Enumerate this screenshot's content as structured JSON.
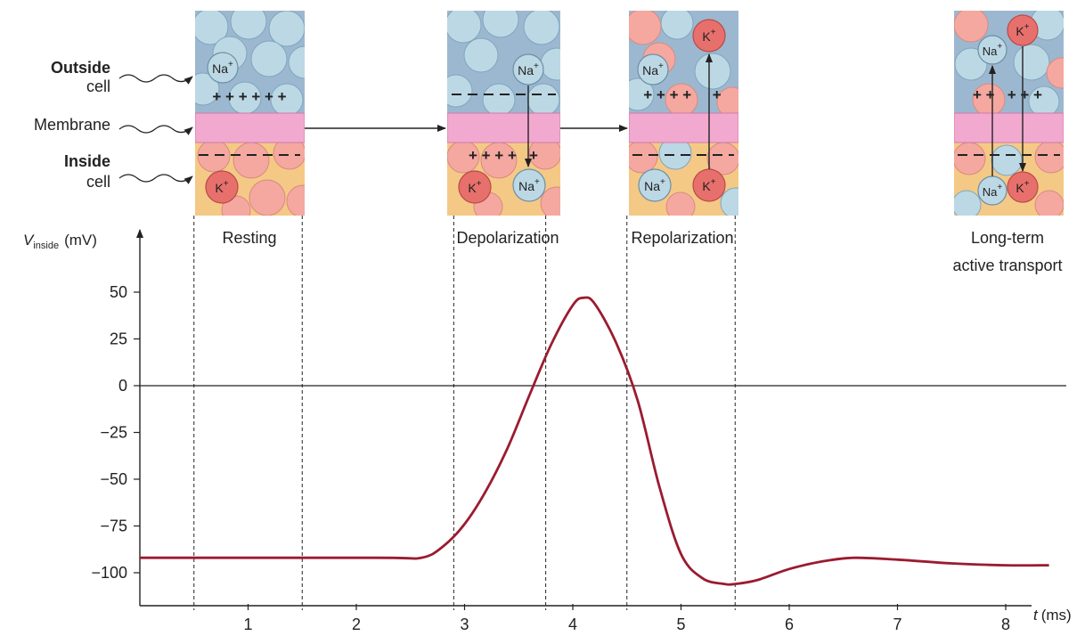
{
  "labels": {
    "outside_line1": "Outside",
    "outside_line2": "cell",
    "membrane": "Membrane",
    "inside_line1": "Inside",
    "inside_line2": "cell",
    "na": "Na",
    "k": "K",
    "ion_charge": "+",
    "plus_row": "+ + + + + +",
    "depol_plus_row": "+ + + +   +",
    "repol_plus_row": "+ + + +     +",
    "lt_plus_row": "+ +   + + +"
  },
  "stages": [
    {
      "label": "Resting"
    },
    {
      "label": "Depolarization"
    },
    {
      "label": "Repolarization"
    },
    {
      "label_line1": "Long-term",
      "label_line2": "active transport"
    }
  ],
  "axes": {
    "y_symbol": "V",
    "y_subscript": "inside",
    "y_unit": "(mV)",
    "x_symbol": "t",
    "x_unit": "(ms)"
  },
  "colors": {
    "curve": "#9b1b30",
    "membrane": "#f2a9cf",
    "outside_fluid": "#9cb8d0",
    "inside_fluid": "#f4c986",
    "circle_blue": "#bcd8e4",
    "circle_pink": "#f4a8a0",
    "ion_k": "#e8706c"
  },
  "chart_data": {
    "type": "line",
    "xlim": [
      0,
      8.4
    ],
    "ylim": [
      -120,
      70
    ],
    "x_ticks": [
      "1",
      "2",
      "3",
      "4",
      "5",
      "6",
      "7",
      "8"
    ],
    "y_ticks": [
      "50",
      "25",
      "0",
      "−25",
      "−50",
      "−75",
      "−100"
    ],
    "y_tick_values": [
      50,
      25,
      0,
      -25,
      -50,
      -75,
      -100
    ],
    "zero_line": 0,
    "dashed_lines_x": [
      0.5,
      1.5,
      2.9,
      3.75,
      4.5,
      5.5
    ],
    "series": [
      {
        "x": [
          0,
          2.2,
          2.6,
          2.8,
          3.0,
          3.2,
          3.4,
          3.6,
          3.8,
          4.0,
          4.1,
          4.2,
          4.4,
          4.6,
          4.8,
          5.0,
          5.2,
          5.4,
          5.5,
          5.7,
          6.0,
          6.3,
          6.6,
          7.0,
          7.5,
          8.0,
          8.4
        ],
        "y": [
          -92,
          -92,
          -92,
          -86,
          -74,
          -56,
          -33,
          -5,
          22,
          43,
          47,
          44,
          23,
          -8,
          -54,
          -90,
          -103,
          -106,
          -106,
          -104,
          -98,
          -94,
          -92,
          -93,
          -95,
          -96,
          -96
        ]
      }
    ]
  }
}
